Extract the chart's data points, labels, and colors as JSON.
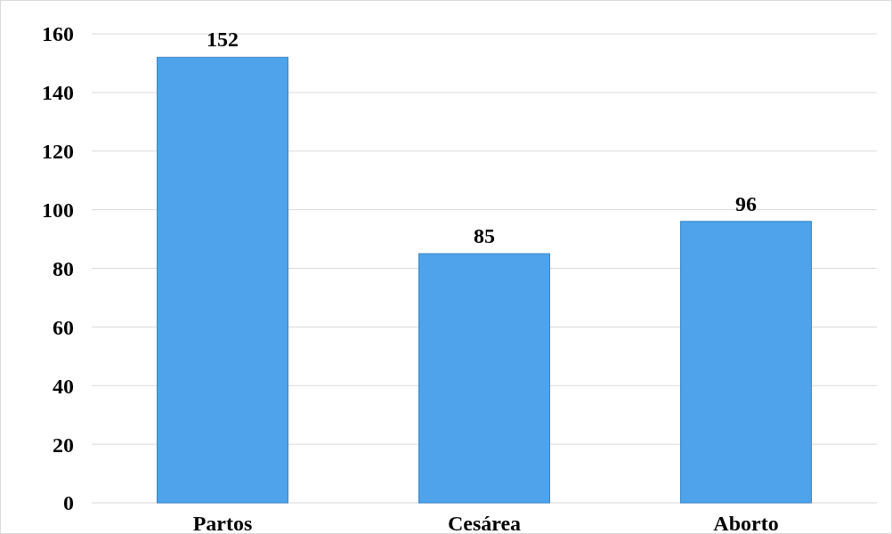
{
  "chart_data": {
    "type": "bar",
    "categories": [
      "Partos",
      "Cesárea",
      "Aborto"
    ],
    "values": [
      152,
      85,
      96
    ],
    "color": "#4ea3ea",
    "ylim": [
      0,
      160
    ],
    "yticks": [
      0,
      20,
      40,
      60,
      80,
      100,
      120,
      140,
      160
    ],
    "grid": true,
    "data_labels": true
  }
}
